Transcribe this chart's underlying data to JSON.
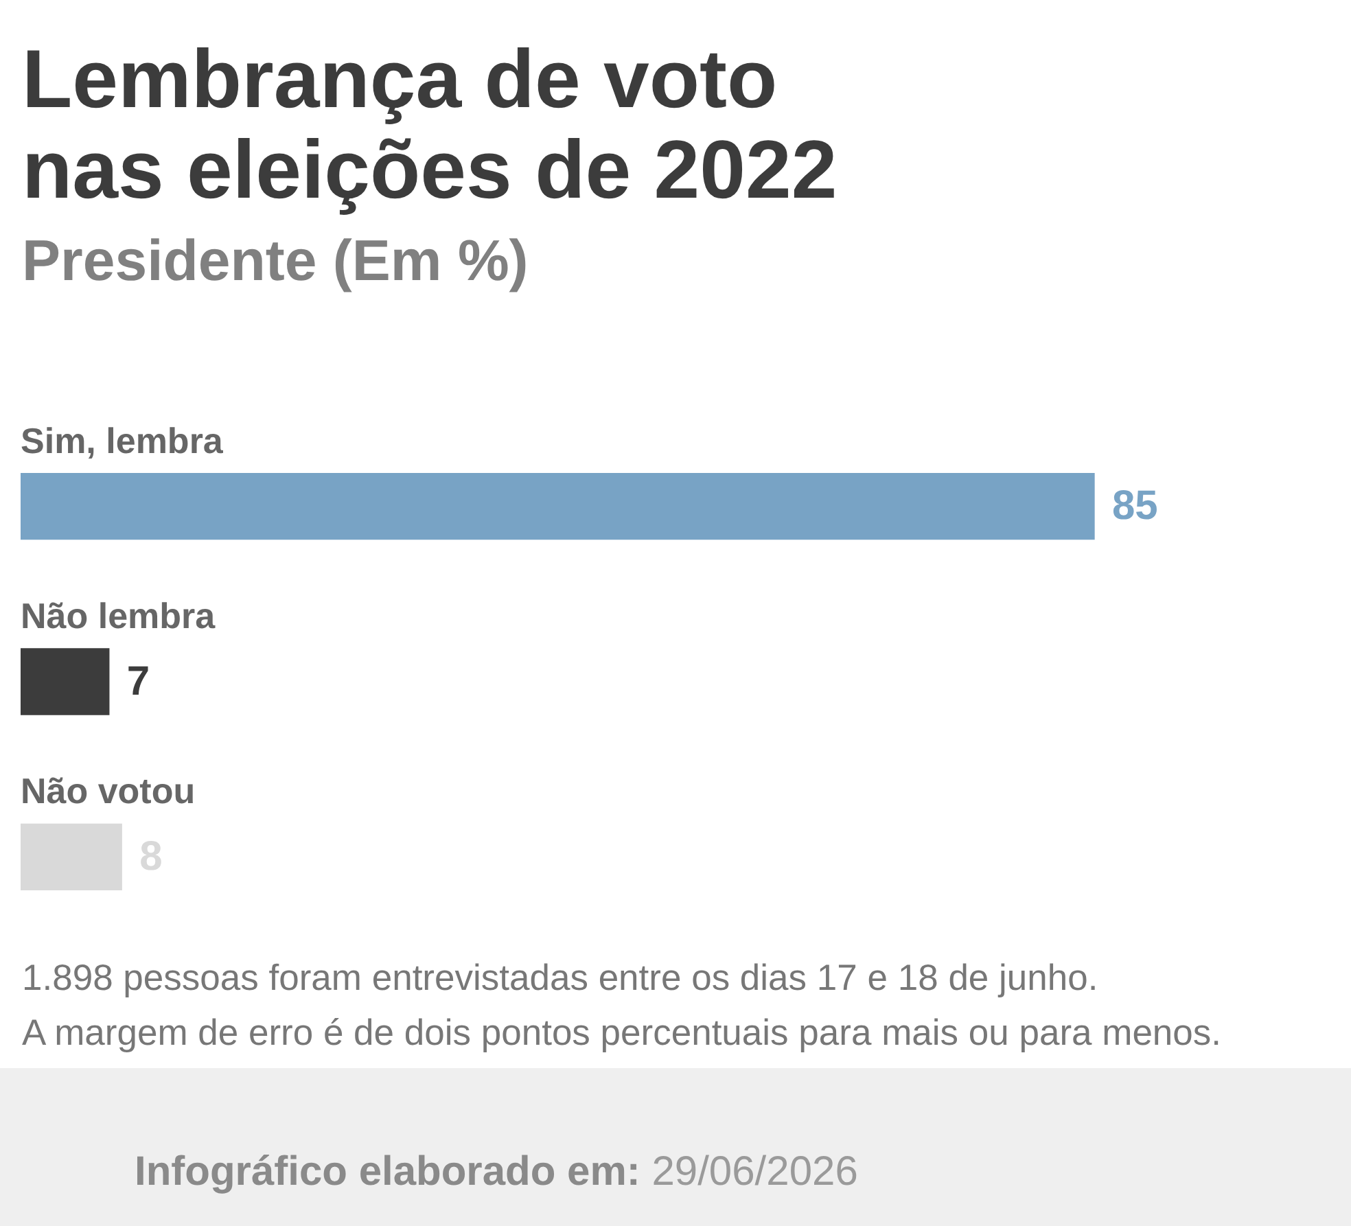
{
  "chart_data": {
    "type": "bar",
    "orientation": "horizontal",
    "title": "Lembrança de voto nas eleições de 2022",
    "subtitle": "Presidente (Em %)",
    "categories": [
      "Sim, lembra",
      "Não lembra",
      "Não votou"
    ],
    "values": [
      85,
      7,
      8
    ],
    "colors": [
      "#78a3c5",
      "#3c3c3c",
      "#d9d9d9"
    ],
    "data_labels": true,
    "tick_labels": "y",
    "annotations": [
      "1.898 pessoas foram entrevistadas entre os dias 17 e 18 de junho.",
      "A margem de erro é de dois pontos percentuais para mais ou para menos.",
      "Infográfico elaborado em: 29/06/2026"
    ]
  }
}
